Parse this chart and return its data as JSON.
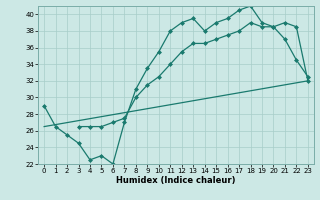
{
  "xlabel": "Humidex (Indice chaleur)",
  "xlim": [
    -0.5,
    23.5
  ],
  "ylim": [
    22,
    41
  ],
  "yticks": [
    22,
    24,
    26,
    28,
    30,
    32,
    34,
    36,
    38,
    40
  ],
  "xticks": [
    0,
    1,
    2,
    3,
    4,
    5,
    6,
    7,
    8,
    9,
    10,
    11,
    12,
    13,
    14,
    15,
    16,
    17,
    18,
    19,
    20,
    21,
    22,
    23
  ],
  "bg_color": "#cce8e5",
  "line_color": "#1a7a6e",
  "series": [
    {
      "x": [
        0,
        1,
        2,
        3,
        4,
        5,
        6,
        7,
        8,
        9,
        10,
        11,
        12,
        13,
        14,
        15,
        16,
        17,
        18,
        19,
        20,
        21,
        22,
        23
      ],
      "y": [
        29,
        26.5,
        25.5,
        24.5,
        22.5,
        23.0,
        22.0,
        27.0,
        31.0,
        33.5,
        35.5,
        38.0,
        39.0,
        39.5,
        38.0,
        39.0,
        39.5,
        40.5,
        41.0,
        39.0,
        38.5,
        37.0,
        34.5,
        32.5
      ]
    },
    {
      "x": [
        0,
        23
      ],
      "y": [
        26.5,
        32.0
      ]
    },
    {
      "x": [
        3,
        4,
        5,
        6,
        7,
        8,
        9,
        10,
        11,
        12,
        13,
        14,
        15,
        16,
        17,
        18,
        19,
        20,
        21,
        22,
        23
      ],
      "y": [
        26.5,
        26.5,
        26.5,
        27.0,
        27.5,
        30.0,
        31.5,
        32.5,
        34.0,
        35.5,
        36.5,
        36.5,
        37.0,
        37.5,
        38.0,
        39.0,
        38.5,
        38.5,
        39.0,
        38.5,
        32.0
      ]
    }
  ]
}
